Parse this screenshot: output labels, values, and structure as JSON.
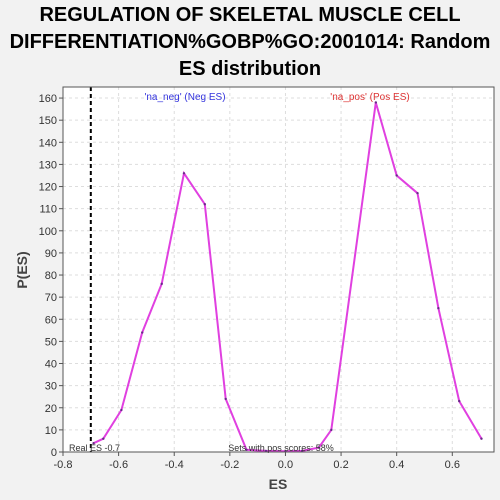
{
  "title_lines": [
    "REGULATION OF SKELETAL MUSCLE CELL",
    "DIFFERENTIATION%GOBP%GO:2001014: Random",
    "ES distribution"
  ],
  "chart_data": {
    "type": "line",
    "xlabel": "ES",
    "ylabel": "P(ES)",
    "xlim": [
      -0.8,
      0.75
    ],
    "ylim": [
      0,
      165
    ],
    "xticks": [
      -0.8,
      -0.6,
      -0.4,
      -0.2,
      0.0,
      0.2,
      0.4,
      0.6
    ],
    "xtick_labels": [
      "-0.8",
      "-0.6",
      "-0.4",
      "-0.2",
      "0.0",
      "0.2",
      "0.4",
      "0.6"
    ],
    "yticks": [
      0,
      10,
      20,
      30,
      40,
      50,
      60,
      70,
      80,
      90,
      100,
      110,
      120,
      130,
      140,
      150,
      160
    ],
    "grid": true,
    "series_color": "#e040e0",
    "series": [
      {
        "x": [
          -0.69,
          -0.655,
          -0.59,
          -0.515,
          -0.445,
          -0.365,
          -0.29,
          -0.215,
          -0.14,
          -0.07,
          0.0,
          0.06,
          0.12,
          0.165,
          0.325,
          0.4,
          0.475,
          0.55,
          0.625,
          0.705
        ],
        "y": [
          4,
          6,
          19,
          54,
          76,
          126,
          112,
          24,
          1,
          0.5,
          0.3,
          0.5,
          2,
          10,
          158,
          125,
          117,
          65,
          23,
          6
        ]
      }
    ],
    "real_es": -0.7,
    "annotations": {
      "neg_label": "'na_neg' (Neg ES)",
      "pos_label": "'na_pos' (Pos ES)",
      "real_es_label": "Real ES -0.7",
      "pos_scores_label": "Sets with pos scores: 58%"
    },
    "neg_label_color": "#3333dd",
    "pos_label_color": "#dd3333"
  }
}
